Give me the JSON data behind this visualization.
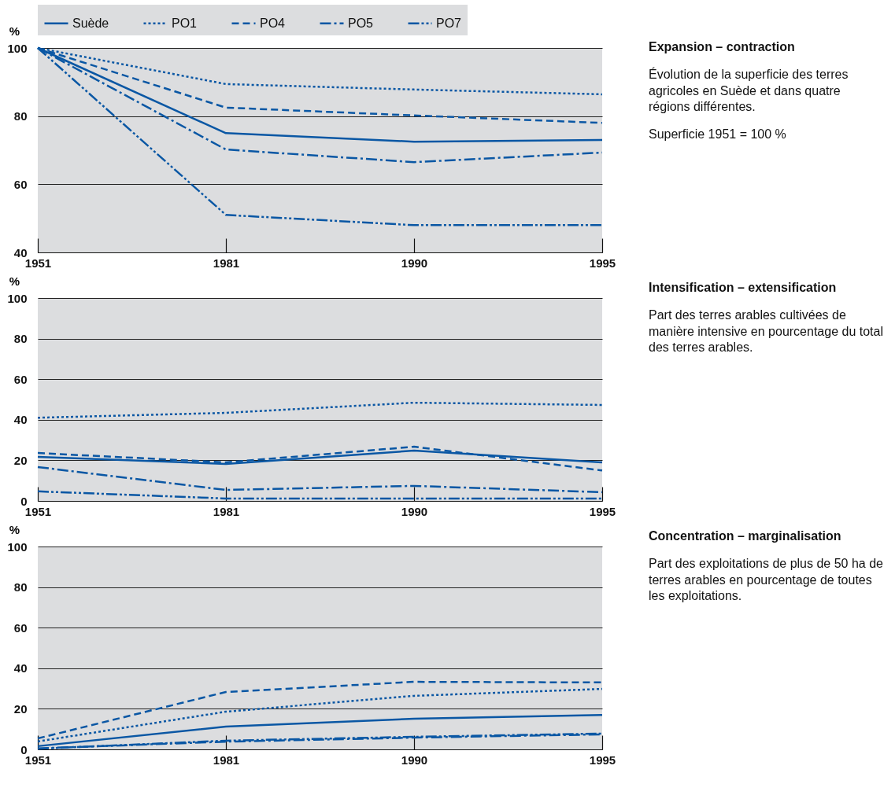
{
  "chart_data": [
    {
      "type": "line",
      "annotations": [
        "Expansion – contraction",
        "Évolution de la superficie des terres agricoles en Suède et dans quatre régions différentes.",
        "Superficie 1951 = 100 %"
      ],
      "ylabel": "%",
      "categories": [
        "1951",
        "1981",
        "1990",
        "1995"
      ],
      "ylim": [
        40,
        100
      ],
      "yticks": [
        40,
        60,
        80,
        100
      ],
      "grid": "y",
      "legend": "top",
      "series": [
        {
          "name": "Suède",
          "color": "#0a57a4",
          "line_style": "solid",
          "values": [
            100,
            75,
            72.5,
            73
          ]
        },
        {
          "name": "PO1",
          "color": "#0a57a4",
          "line_style": "dotted",
          "values": [
            100,
            89.4,
            87.8,
            86.4
          ]
        },
        {
          "name": "PO4",
          "color": "#0a57a4",
          "line_style": "dashed",
          "values": [
            100,
            82.5,
            80.2,
            78
          ]
        },
        {
          "name": "PO5",
          "color": "#0a57a4",
          "line_style": "dashdot",
          "values": [
            100,
            70.2,
            66.5,
            69.3
          ]
        },
        {
          "name": "PO7",
          "color": "#0a57a4",
          "line_style": "dashdotdot",
          "values": [
            100,
            51,
            48,
            48
          ]
        }
      ]
    },
    {
      "type": "line",
      "annotations": [
        "Intensification – extensification",
        "Part des terres arables cultivées de manière intensive en pourcentage du total des terres arables."
      ],
      "ylabel": "%",
      "categories": [
        "1951",
        "1981",
        "1990",
        "1995"
      ],
      "ylim": [
        0,
        100
      ],
      "yticks": [
        0,
        20,
        40,
        60,
        80,
        100
      ],
      "grid": "y",
      "series": [
        {
          "color": "#0a57a4",
          "line_style": "solid",
          "values": [
            21.7,
            18.2,
            24.8,
            19
          ]
        },
        {
          "color": "#0a57a4",
          "line_style": "dotted",
          "values": [
            41,
            43.4,
            48.4,
            47.3
          ]
        },
        {
          "color": "#0a57a4",
          "line_style": "dashed",
          "values": [
            23.6,
            19,
            26.7,
            15
          ]
        },
        {
          "color": "#0a57a4",
          "line_style": "dashdot",
          "values": [
            16.7,
            5.4,
            7.4,
            4.3
          ]
        },
        {
          "color": "#0a57a4",
          "line_style": "dashdotdot",
          "values": [
            4.7,
            1.2,
            1.2,
            1.2
          ]
        }
      ]
    },
    {
      "type": "line",
      "annotations": [
        "Concentration – marginalisation",
        "Part des exploitations de plus de 50 ha de terres arables en pourcentage de toutes les exploitations."
      ],
      "ylabel": "%",
      "categories": [
        "1951",
        "1981",
        "1990",
        "1995"
      ],
      "ylim": [
        0,
        100
      ],
      "yticks": [
        0,
        20,
        40,
        60,
        80,
        100
      ],
      "grid": "y",
      "series": [
        {
          "color": "#0a57a4",
          "line_style": "solid",
          "values": [
            1.6,
            11.2,
            15.1,
            17
          ]
        },
        {
          "color": "#0a57a4",
          "line_style": "dotted",
          "values": [
            3.9,
            18.6,
            26.4,
            29.8
          ]
        },
        {
          "color": "#0a57a4",
          "line_style": "dashed",
          "values": [
            5.4,
            28.3,
            33.3,
            33
          ]
        },
        {
          "color": "#0a57a4",
          "line_style": "dashdot",
          "values": [
            0.5,
            3.8,
            5.8,
            7.4
          ]
        },
        {
          "color": "#0a57a4",
          "line_style": "dashdotdot",
          "values": [
            0.3,
            4.3,
            6.2,
            7.8
          ]
        }
      ]
    }
  ]
}
